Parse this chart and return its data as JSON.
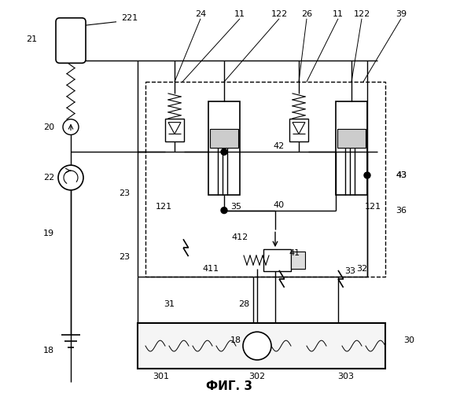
{
  "bg_color": "#ffffff",
  "line_color": "#000000",
  "title": "ФИГ. 3"
}
